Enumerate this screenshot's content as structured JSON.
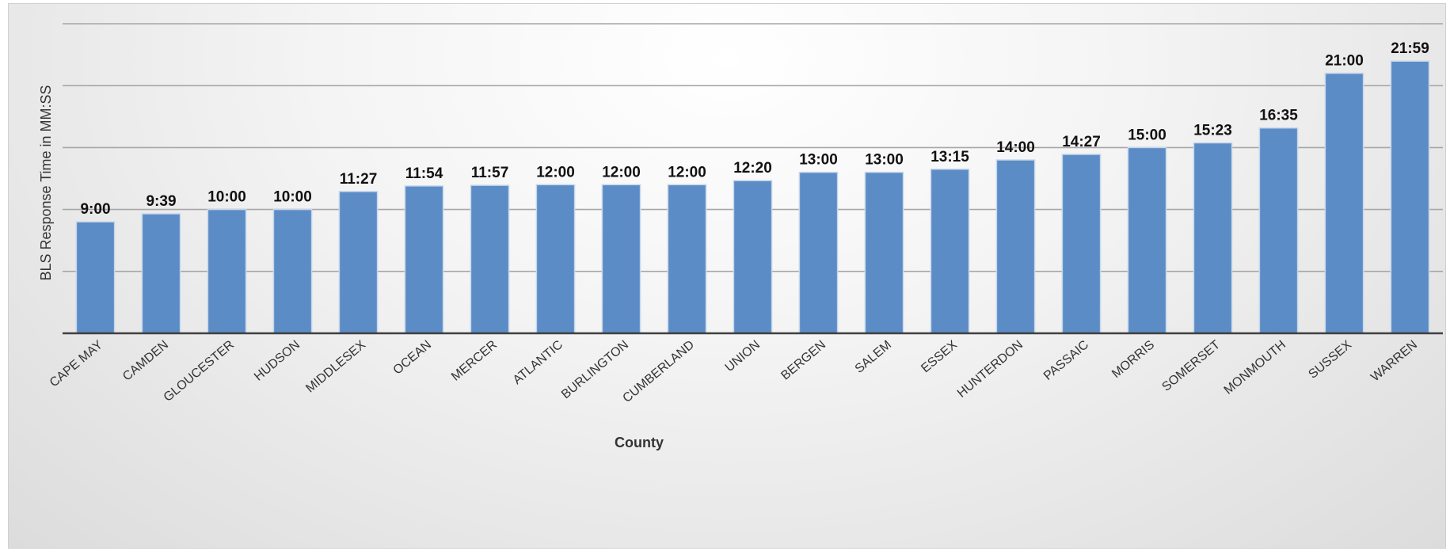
{
  "chart_data": {
    "type": "bar",
    "xlabel": "County",
    "ylabel": "BLS Response Time in MM:SS",
    "y_unit": "minutes",
    "ylim": [
      0,
      25
    ],
    "y_gridlines": [
      5,
      10,
      15,
      20,
      25
    ],
    "y_tick_labels_shown": false,
    "bar_color": "#5b8cc6",
    "categories": [
      "CAPE MAY",
      "CAMDEN",
      "GLOUCESTER",
      "HUDSON",
      "MIDDLESEX",
      "OCEAN",
      "MERCER",
      "ATLANTIC",
      "BURLINGTON",
      "CUMBERLAND",
      "UNION",
      "BERGEN",
      "SALEM",
      "ESSEX",
      "HUNTERDON",
      "PASSAIC",
      "MORRIS",
      "SOMERSET",
      "MONMOUTH",
      "SUSSEX",
      "WARREN"
    ],
    "values": [
      9.0,
      9.65,
      10.0,
      10.0,
      11.45,
      11.9,
      11.95,
      12.0,
      12.0,
      12.0,
      12.33,
      13.0,
      13.0,
      13.25,
      14.0,
      14.45,
      15.0,
      15.38,
      16.58,
      21.0,
      21.98
    ],
    "data_labels": [
      "9:00",
      "9:39",
      "10:00",
      "10:00",
      "11:27",
      "11:54",
      "11:57",
      "12:00",
      "12:00",
      "12:00",
      "12:20",
      "13:00",
      "13:00",
      "13:15",
      "14:00",
      "14:27",
      "15:00",
      "15:23",
      "16:35",
      "21:00",
      "21:59"
    ]
  }
}
